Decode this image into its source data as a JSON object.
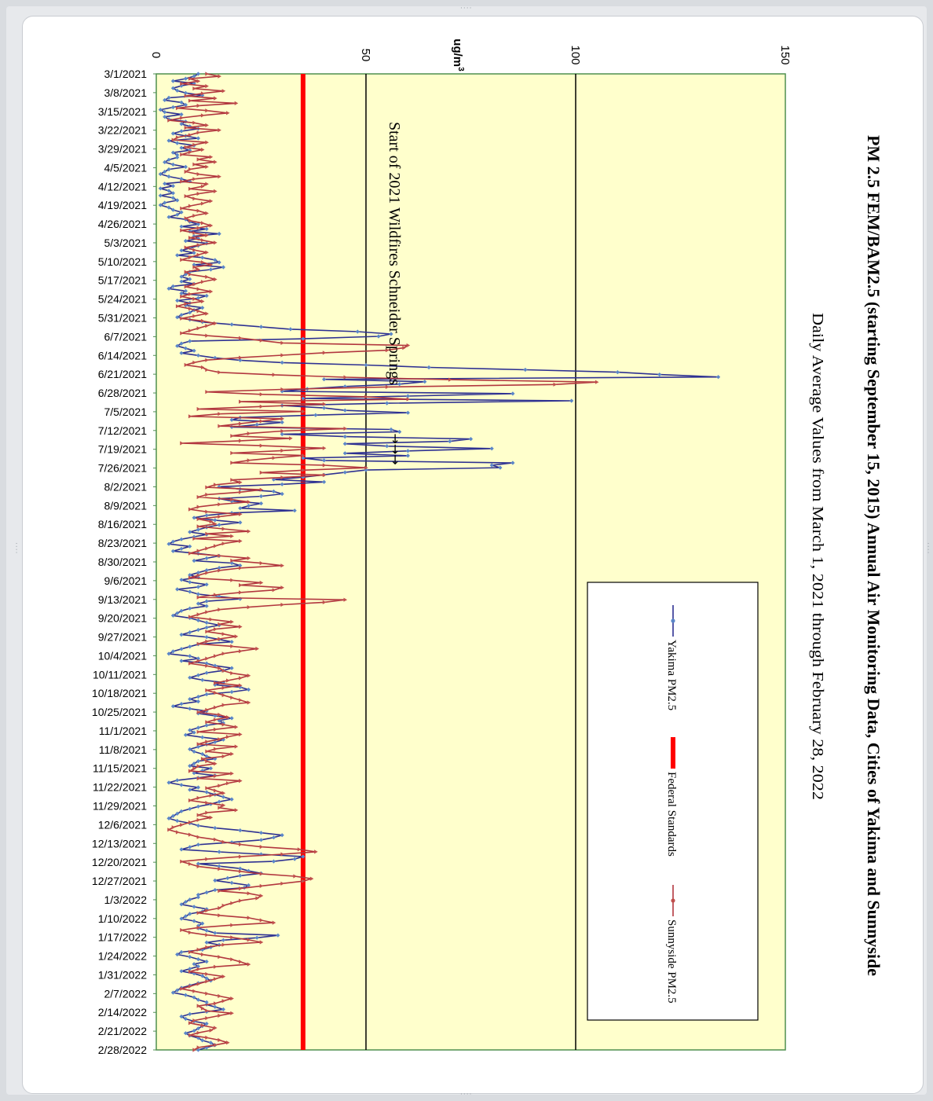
{
  "chart_data": {
    "type": "line",
    "orientation": "rotated 90° clockwise (dates run top to bottom, values increase to the right)",
    "title": "PM 2.5 FEM/BAM2.5 (starting September 15, 2015) Annual  Air Monitoring Data, Cities of Yakima  and Sunnyside",
    "subtitle": "Daily  Average  Values from  March 1, 2021 through  February 28, 2022",
    "ylabel": "ug/m3",
    "ylim": [
      0,
      150
    ],
    "yticks": [
      0,
      50,
      100,
      150
    ],
    "gridlines": [
      50,
      100
    ],
    "annotation": "Start  of  2021  Wildfires  Schneider  Springs",
    "annotation_date": "8/2/2021",
    "x_tick_labels": [
      "3/1/2021",
      "3/8/2021",
      "3/15/2021",
      "3/22/2021",
      "3/29/2021",
      "4/5/2021",
      "4/12/2021",
      "4/19/2021",
      "4/26/2021",
      "5/3/2021",
      "5/10/2021",
      "5/17/2021",
      "5/24/2021",
      "5/31/2021",
      "6/7/2021",
      "6/14/2021",
      "6/21/2021",
      "6/28/2021",
      "7/5/2021",
      "7/12/2021",
      "7/19/2021",
      "7/26/2021",
      "8/2/2021",
      "8/9/2021",
      "8/16/2021",
      "8/23/2021",
      "8/30/2021",
      "9/6/2021",
      "9/13/2021",
      "9/20/2021",
      "9/27/2021",
      "10/4/2021",
      "10/11/2021",
      "10/18/2021",
      "10/25/2021",
      "11/1/2021",
      "11/8/2021",
      "11/15/2021",
      "11/22/2021",
      "11/29/2021",
      "12/6/2021",
      "12/13/2021",
      "12/20/2021",
      "12/27/2021",
      "1/3/2022",
      "1/10/2022",
      "1/17/2022",
      "1/24/2022",
      "1/31/2022",
      "2/7/2022",
      "2/14/2022",
      "2/21/2022",
      "2/28/2022"
    ],
    "legend_position": "inside, near the bottom of the plot (right side when the page is turned)",
    "background_color": "#ffffcc",
    "series": [
      {
        "name": "Yakima PM2.5",
        "color": "#2e3192",
        "marker": "#5b86c8",
        "values": [
          10,
          9,
          7,
          4,
          9,
          6,
          4,
          5,
          7,
          11,
          3,
          2,
          6,
          7,
          4,
          1,
          2,
          6,
          2,
          3,
          7,
          6,
          8,
          10,
          6,
          4,
          7,
          10,
          3,
          5,
          9,
          6,
          8,
          4,
          5,
          5,
          3,
          2,
          4,
          7,
          3,
          2,
          1,
          3,
          6,
          8,
          2,
          4,
          1,
          3,
          4,
          1,
          4,
          5,
          2,
          1,
          3,
          4,
          6,
          5,
          3,
          7,
          8,
          10,
          6,
          12,
          8,
          15,
          9,
          10,
          7,
          12,
          10,
          8,
          6,
          9,
          5,
          11,
          14,
          15,
          9,
          16,
          13,
          8,
          7,
          6,
          8,
          6,
          9,
          4,
          3,
          7,
          6,
          12,
          10,
          5,
          8,
          7,
          11,
          9,
          8,
          6,
          5,
          8,
          11,
          18,
          25,
          32,
          48,
          56,
          53,
          35,
          8,
          6,
          5,
          7,
          9,
          6,
          10,
          14,
          20,
          30,
          50,
          65,
          88,
          110,
          120,
          134,
          40,
          64,
          58,
          45,
          36,
          30,
          85,
          60,
          35,
          99,
          55,
          30,
          40,
          45,
          60,
          38,
          20,
          18,
          30,
          24,
          18,
          56,
          58,
          30,
          45,
          75,
          70,
          45,
          55,
          80,
          60,
          45,
          60,
          35,
          40,
          85,
          80,
          82,
          50,
          45,
          40,
          35,
          28,
          40,
          30,
          15,
          20,
          28,
          30,
          25,
          15,
          18,
          25,
          22,
          20,
          33,
          18,
          12,
          9,
          14,
          20,
          15,
          12,
          10,
          8,
          12,
          9,
          6,
          4,
          3,
          8,
          6,
          4,
          10,
          15,
          12,
          9,
          18,
          20,
          15,
          12,
          10,
          8,
          10,
          6,
          8,
          12,
          10,
          5,
          8,
          10,
          15,
          20,
          12,
          10,
          12,
          8,
          6,
          5,
          4,
          8,
          10,
          12,
          15,
          12,
          10,
          8,
          6,
          12,
          15,
          18,
          10,
          8,
          6,
          4,
          3,
          8,
          10,
          6,
          12,
          14,
          18,
          16,
          12,
          10,
          8,
          11,
          16,
          14,
          20,
          22,
          18,
          12,
          10,
          8,
          10,
          6,
          4,
          8,
          12,
          10,
          14,
          18,
          15,
          16,
          12,
          10,
          8,
          9,
          7,
          11,
          16,
          14,
          12,
          10,
          8,
          9,
          11,
          12,
          14,
          10,
          9,
          8,
          13,
          11,
          9,
          14,
          10,
          5,
          3,
          6,
          10,
          8,
          12,
          14,
          16,
          18,
          15,
          13,
          10,
          8,
          6,
          5,
          4,
          3,
          5,
          8,
          10,
          14,
          20,
          25,
          30,
          28,
          25,
          18,
          10,
          8,
          6,
          15,
          25,
          35,
          33,
          28,
          10,
          15,
          20,
          22,
          25,
          20,
          17,
          14,
          18,
          22,
          21,
          14,
          12,
          10,
          10,
          8,
          7,
          6,
          9,
          12,
          11,
          8,
          7,
          6,
          9,
          11,
          10,
          10,
          12,
          14,
          29,
          24,
          16,
          12,
          15,
          13,
          11,
          6,
          5,
          8,
          10,
          12,
          9,
          10,
          8,
          6,
          9,
          11,
          12,
          13,
          10,
          8,
          6,
          5,
          4,
          7,
          9,
          10,
          12,
          12,
          14,
          16,
          12,
          8,
          6,
          7,
          9,
          12,
          11,
          10,
          9,
          7,
          8,
          10,
          11,
          13,
          14,
          12,
          10
        ]
      },
      {
        "name": "Federal Standards",
        "color": "#ff0000",
        "constant": 35
      },
      {
        "name": "Sunnyside PM2.5",
        "color": "#b2373f",
        "marker": "#c0504d",
        "values": [
          12,
          15,
          8,
          10,
          6,
          12,
          9,
          16,
          11,
          7,
          14,
          8,
          19,
          10,
          5,
          12,
          17,
          11,
          6,
          3,
          9,
          12,
          7,
          15,
          10,
          8,
          5,
          4,
          12,
          9,
          7,
          11,
          8,
          6,
          13,
          10,
          14,
          9,
          12,
          8,
          7,
          10,
          15,
          9,
          6,
          12,
          11,
          8,
          14,
          10,
          7,
          9,
          13,
          11,
          8,
          6,
          10,
          12,
          9,
          7,
          8,
          11,
          13,
          10,
          6,
          9,
          12,
          8,
          11,
          14,
          10,
          7,
          9,
          12,
          10,
          8,
          6,
          11,
          13,
          9,
          10,
          7,
          8,
          12,
          14,
          11,
          9,
          7,
          10,
          13,
          8,
          6,
          9,
          11,
          7,
          5,
          8,
          10,
          12,
          9,
          6,
          11,
          14,
          12,
          10,
          8,
          6,
          12,
          20,
          25,
          30,
          60,
          59,
          55,
          40,
          30,
          20,
          12,
          9,
          7,
          11,
          12,
          15,
          28,
          45,
          70,
          105,
          95,
          55,
          30,
          12,
          25,
          50,
          60,
          20,
          40,
          25,
          10,
          35,
          15,
          8,
          30,
          25,
          20,
          15,
          45,
          30,
          22,
          18,
          32,
          20,
          6,
          25,
          40,
          30,
          18,
          35,
          28,
          22,
          18,
          40,
          50,
          35,
          25,
          40,
          30,
          18,
          20,
          14,
          12,
          25,
          20,
          12,
          10,
          18,
          22,
          15,
          10,
          8,
          12,
          20,
          15,
          10,
          13,
          14,
          10,
          16,
          22,
          12,
          18,
          9,
          20,
          16,
          14,
          12,
          10,
          8,
          15,
          22,
          18,
          25,
          30,
          20,
          15,
          12,
          10,
          8,
          18,
          25,
          20,
          30,
          28,
          20,
          14,
          10,
          45,
          40,
          30,
          22,
          15,
          12,
          10,
          8,
          13,
          18,
          15,
          20,
          14,
          12,
          16,
          19,
          15,
          12,
          10,
          18,
          24,
          20,
          16,
          14,
          12,
          10,
          8,
          12,
          15,
          16,
          18,
          22,
          20,
          17,
          14,
          20,
          16,
          12,
          14,
          16,
          18,
          20,
          22,
          16,
          14,
          12,
          10,
          15,
          17,
          14,
          12,
          16,
          19,
          14,
          10,
          20,
          17,
          15,
          12,
          10,
          19,
          14,
          12,
          18,
          16,
          11,
          12,
          14,
          10,
          9,
          8,
          18,
          14,
          10,
          20,
          17,
          15,
          12,
          14,
          16,
          13,
          10,
          8,
          12,
          16,
          15,
          19,
          12,
          10,
          13,
          10,
          8,
          6,
          4,
          3,
          5,
          8,
          10,
          14,
          16,
          20,
          25,
          34,
          38,
          30,
          20,
          12,
          6,
          8,
          10,
          15,
          20,
          25,
          33,
          37,
          35,
          30,
          25,
          20,
          15,
          22,
          25,
          24,
          20,
          18,
          16,
          15,
          12,
          10,
          15,
          22,
          25,
          28,
          18,
          10,
          6,
          8,
          12,
          18,
          22,
          25,
          16,
          12,
          10,
          8,
          11,
          15,
          18,
          20,
          22,
          14,
          10,
          8,
          12,
          16,
          14,
          12,
          10,
          8,
          6,
          9,
          12,
          15,
          18,
          16,
          14,
          10,
          11,
          12,
          18,
          15,
          12,
          9,
          8,
          11,
          14,
          13,
          10,
          8,
          12,
          15,
          17,
          14,
          10,
          9
        ]
      }
    ]
  }
}
